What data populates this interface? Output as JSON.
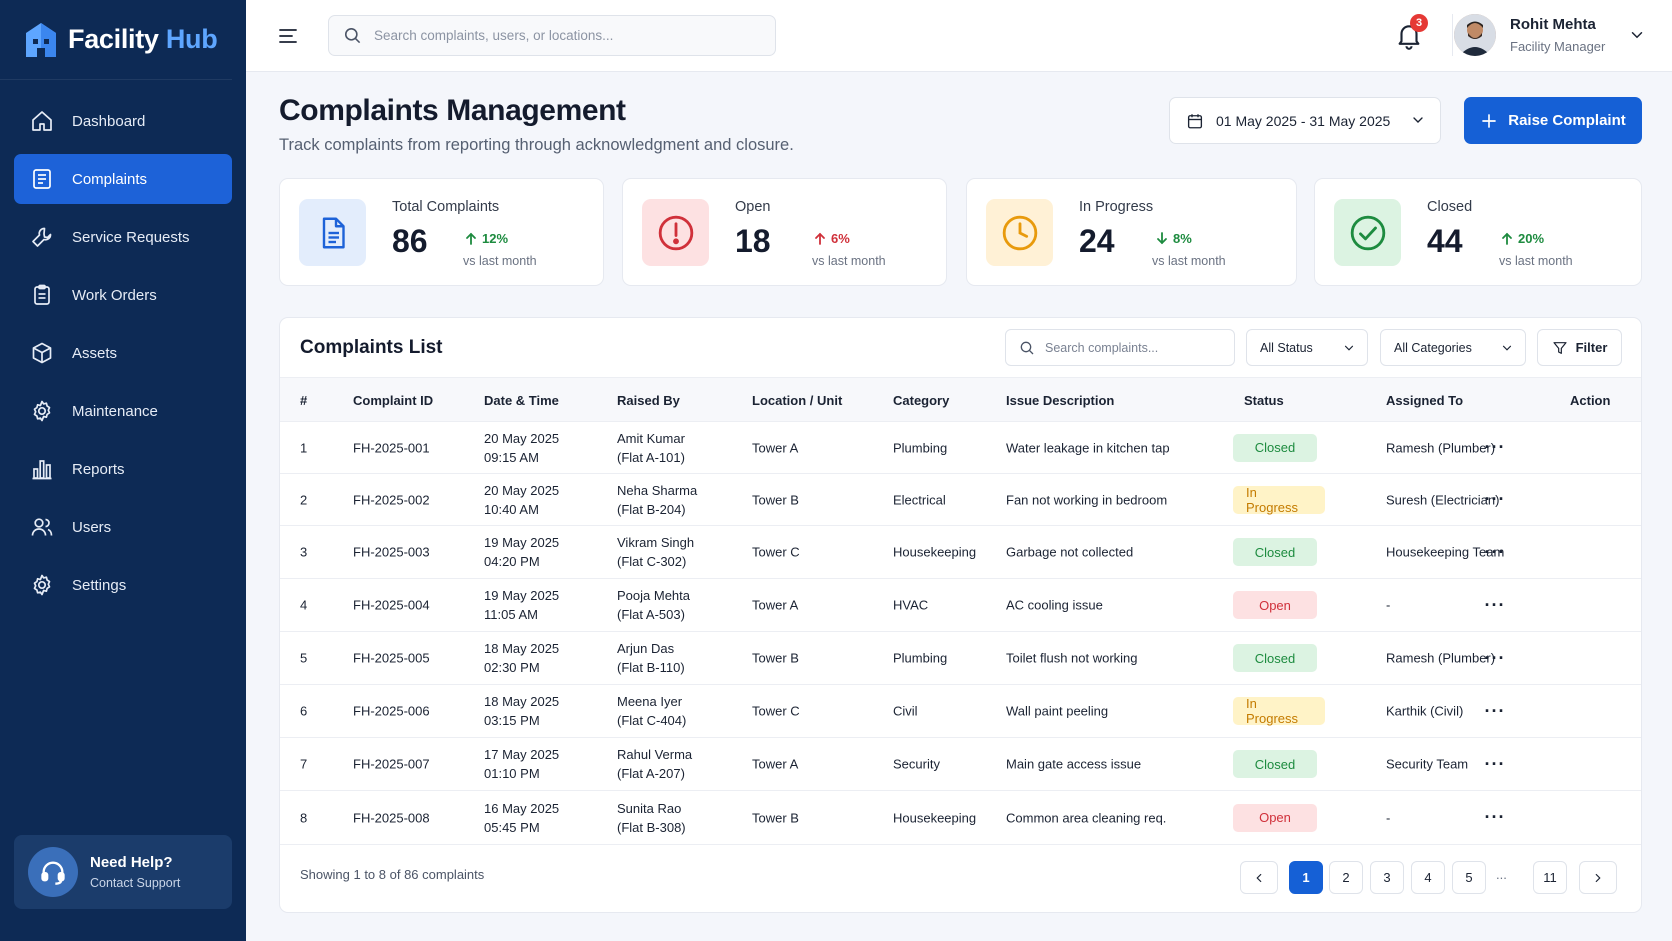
{
  "brand": {
    "name_part1": "Facility",
    "name_part2": " Hub"
  },
  "sidebar": {
    "items": [
      {
        "label": "Dashboard",
        "icon": "home-icon"
      },
      {
        "label": "Complaints",
        "icon": "document-icon",
        "active": true
      },
      {
        "label": "Service Requests",
        "icon": "wrench-icon"
      },
      {
        "label": "Work Orders",
        "icon": "clipboard-icon"
      },
      {
        "label": "Assets",
        "icon": "cube-icon"
      },
      {
        "label": "Maintenance",
        "icon": "gear-icon"
      },
      {
        "label": "Reports",
        "icon": "bar-chart-icon"
      },
      {
        "label": "Users",
        "icon": "users-icon"
      },
      {
        "label": "Settings",
        "icon": "settings-icon"
      }
    ],
    "help": {
      "title": "Need Help?",
      "subtitle": "Contact Support"
    }
  },
  "topbar": {
    "search_placeholder": "Search complaints, users, or locations...",
    "notification_count": "3",
    "user": {
      "name": "Rohit Mehta",
      "role": "Facility Manager"
    }
  },
  "header": {
    "title": "Complaints Management",
    "subtitle": "Track complaints from reporting through acknowledgment and closure.",
    "date_range": "01 May 2025 - 31 May 2025",
    "raise_button": "Raise Complaint"
  },
  "stats": [
    {
      "label": "Total Complaints",
      "value": "86",
      "delta": "12%",
      "direction": "up",
      "delta_color": "#1d8b3f",
      "vs": "vs last month",
      "icon": "file-icon",
      "tint": "#e3edfc",
      "accent": "#1d62d8"
    },
    {
      "label": "Open",
      "value": "18",
      "delta": "6%",
      "direction": "up",
      "delta_color": "#d0303a",
      "vs": "vs last month",
      "icon": "alert-circle-icon",
      "tint": "#fde1e2",
      "accent": "#d0303a"
    },
    {
      "label": "In Progress",
      "value": "24",
      "delta": "8%",
      "direction": "down",
      "delta_color": "#1d8b3f",
      "vs": "vs last month",
      "icon": "clock-icon",
      "tint": "#fff1d6",
      "accent": "#e89a0c"
    },
    {
      "label": "Closed",
      "value": "44",
      "delta": "20%",
      "direction": "up",
      "delta_color": "#1d8b3f",
      "vs": "vs last month",
      "icon": "check-circle-icon",
      "tint": "#dcf3e2",
      "accent": "#1d8b3f"
    }
  ],
  "list": {
    "title": "Complaints List",
    "search_placeholder": "Search complaints...",
    "status_filter": "All Status",
    "category_filter": "All Categories",
    "filter_button": "Filter",
    "columns": [
      "#",
      "Complaint ID",
      "Date & Time",
      "Raised By",
      "Location / Unit",
      "Category",
      "Issue Description",
      "Status",
      "Assigned To",
      "Action"
    ],
    "rows": [
      {
        "num": "1",
        "id": "FH-2025-001",
        "date": "20 May 2025",
        "time": "09:15 AM",
        "name": "Amit Kumar",
        "flat": "(Flat A-101)",
        "location": "Tower A",
        "category": "Plumbing",
        "issue": "Water leakage in kitchen tap",
        "status": "Closed",
        "assigned": "Ramesh (Plumber)"
      },
      {
        "num": "2",
        "id": "FH-2025-002",
        "date": "20 May 2025",
        "time": "10:40 AM",
        "name": "Neha Sharma",
        "flat": "(Flat B-204)",
        "location": "Tower B",
        "category": "Electrical",
        "issue": "Fan not working in bedroom",
        "status": "In Progress",
        "assigned": "Suresh (Electrician)"
      },
      {
        "num": "3",
        "id": "FH-2025-003",
        "date": "19 May 2025",
        "time": "04:20 PM",
        "name": "Vikram Singh",
        "flat": "(Flat C-302)",
        "location": "Tower C",
        "category": "Housekeeping",
        "issue": "Garbage not collected",
        "status": "Closed",
        "assigned": "Housekeeping Team"
      },
      {
        "num": "4",
        "id": "FH-2025-004",
        "date": "19 May 2025",
        "time": "11:05 AM",
        "name": "Pooja Mehta",
        "flat": "(Flat A-503)",
        "location": "Tower A",
        "category": "HVAC",
        "issue": "AC cooling issue",
        "status": "Open",
        "assigned": "-"
      },
      {
        "num": "5",
        "id": "FH-2025-005",
        "date": "18 May 2025",
        "time": "02:30 PM",
        "name": "Arjun Das",
        "flat": "(Flat B-110)",
        "location": "Tower B",
        "category": "Plumbing",
        "issue": "Toilet flush not working",
        "status": "Closed",
        "assigned": "Ramesh (Plumber)"
      },
      {
        "num": "6",
        "id": "FH-2025-006",
        "date": "18 May 2025",
        "time": "03:15 PM",
        "name": "Meena Iyer",
        "flat": "(Flat C-404)",
        "location": "Tower C",
        "category": "Civil",
        "issue": "Wall paint peeling",
        "status": "In Progress",
        "assigned": "Karthik (Civil)"
      },
      {
        "num": "7",
        "id": "FH-2025-007",
        "date": "17 May 2025",
        "time": "01:10 PM",
        "name": "Rahul Verma",
        "flat": "(Flat A-207)",
        "location": "Tower A",
        "category": "Security",
        "issue": "Main gate access issue",
        "status": "Closed",
        "assigned": "Security Team"
      },
      {
        "num": "8",
        "id": "FH-2025-008",
        "date": "16 May 2025",
        "time": "05:45 PM",
        "name": "Sunita Rao",
        "flat": "(Flat B-308)",
        "location": "Tower B",
        "category": "Housekeeping",
        "issue": "Common area cleaning req.",
        "status": "Open",
        "assigned": "-"
      }
    ],
    "showing": "Showing 1 to 8 of 86 complaints",
    "pagination": {
      "pages": [
        "1",
        "2",
        "3",
        "4",
        "5"
      ],
      "ellipsis": "...",
      "last": "11",
      "current": "1"
    }
  },
  "colors": {
    "sidebar_bg": "#0d2a55",
    "accent": "#1560d6"
  }
}
